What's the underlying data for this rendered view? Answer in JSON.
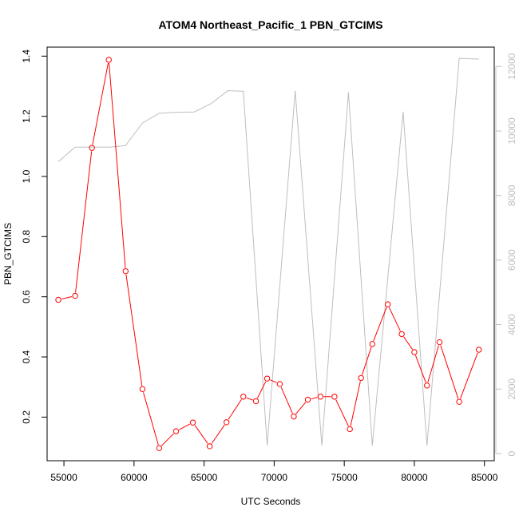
{
  "chart_data": {
    "type": "line",
    "title": "ATOM4 Northeast_Pacific_1 PBN_GTCIMS",
    "xlabel": "UTC Seconds",
    "ylabel": "PBN_GTCIMS",
    "xlim": [
      53800,
      85700
    ],
    "ylim": [
      0.055,
      1.43
    ],
    "y2lim": [
      -220,
      12600
    ],
    "x_ticks": [
      55000,
      60000,
      65000,
      70000,
      75000,
      80000,
      85000
    ],
    "y_ticks": [
      0.2,
      0.4,
      0.6,
      0.8,
      1.0,
      1.2,
      1.4
    ],
    "y_tick_labels": [
      "0.2",
      "0.4",
      "0.6",
      "0.8",
      "1.0",
      "1.2",
      "1.4"
    ],
    "y2_ticks": [
      0,
      2000,
      4000,
      6000,
      8000,
      10000,
      12000
    ],
    "grid": false,
    "colors": {
      "primary": "#ff0000",
      "secondary": "#bebebe"
    },
    "series": [
      {
        "axis": "left",
        "style": "line+circles",
        "x": [
          54600,
          55800,
          57000,
          58200,
          59400,
          60600,
          61800,
          63000,
          64200,
          65400,
          66600,
          67800,
          68700,
          69500,
          70400,
          71400,
          72400,
          73300,
          74300,
          75400,
          76200,
          77000,
          78100,
          79100,
          80000,
          80900,
          81800,
          83200,
          84600
        ],
        "y": [
          0.59,
          0.603,
          1.095,
          1.388,
          0.685,
          0.293,
          0.097,
          0.153,
          0.182,
          0.103,
          0.183,
          0.268,
          0.253,
          0.328,
          0.31,
          0.202,
          0.258,
          0.268,
          0.268,
          0.16,
          0.33,
          0.443,
          0.575,
          0.476,
          0.416,
          0.305,
          0.449,
          0.251,
          0.424
        ]
      },
      {
        "axis": "right",
        "style": "line",
        "x": [
          54600,
          55800,
          57000,
          58300,
          59400,
          60600,
          61800,
          63000,
          64300,
          65500,
          66700,
          67800,
          69500,
          71500,
          73400,
          75300,
          77000,
          79200,
          80900,
          83200,
          84600
        ],
        "y": [
          9050,
          9500,
          9500,
          9500,
          9550,
          10250,
          10550,
          10580,
          10590,
          10850,
          11250,
          11230,
          250,
          11250,
          250,
          11200,
          250,
          10600,
          250,
          12250,
          12230
        ]
      }
    ]
  }
}
